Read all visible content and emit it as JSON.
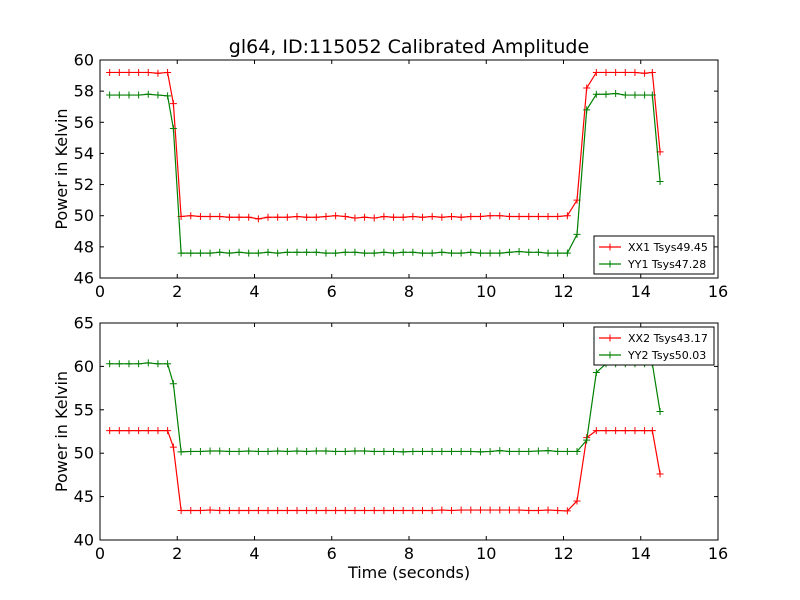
{
  "chart_data": [
    {
      "type": "line",
      "title": "gl64, ID:115052 Calibrated Amplitude",
      "xlabel": "",
      "ylabel": "Power in Kelvin",
      "xlim": [
        0,
        16
      ],
      "ylim": [
        46,
        60
      ],
      "xticks": [
        0,
        2,
        4,
        6,
        8,
        10,
        12,
        14,
        16
      ],
      "yticks": [
        46,
        48,
        50,
        52,
        54,
        56,
        58,
        60
      ],
      "grid": false,
      "legend": "bottom-right",
      "x": [
        0.25,
        0.5,
        0.75,
        1.0,
        1.25,
        1.5,
        1.75,
        1.9,
        2.1,
        2.35,
        2.6,
        2.85,
        3.1,
        3.35,
        3.6,
        3.85,
        4.1,
        4.35,
        4.6,
        4.85,
        5.1,
        5.35,
        5.6,
        5.85,
        6.1,
        6.35,
        6.6,
        6.85,
        7.1,
        7.35,
        7.6,
        7.85,
        8.1,
        8.35,
        8.6,
        8.85,
        9.1,
        9.35,
        9.6,
        9.85,
        10.1,
        10.35,
        10.6,
        10.85,
        11.1,
        11.35,
        11.6,
        11.85,
        12.1,
        12.35,
        12.6,
        12.85,
        13.1,
        13.35,
        13.6,
        13.85,
        14.1,
        14.3,
        14.5
      ],
      "series": [
        {
          "name": "XX1 Tsys49.45",
          "color": "#ff0000",
          "values": [
            59.2,
            59.2,
            59.2,
            59.2,
            59.2,
            59.15,
            59.2,
            57.2,
            49.95,
            50.0,
            49.95,
            49.95,
            49.95,
            49.9,
            49.9,
            49.9,
            49.8,
            49.9,
            49.9,
            49.9,
            49.95,
            49.9,
            49.9,
            49.95,
            50.0,
            49.95,
            49.85,
            49.9,
            49.85,
            49.95,
            49.9,
            49.9,
            49.95,
            49.9,
            49.95,
            49.9,
            49.95,
            49.9,
            49.95,
            49.95,
            50.0,
            50.0,
            49.95,
            49.95,
            49.95,
            49.95,
            49.95,
            49.95,
            50.0,
            51.0,
            58.2,
            59.2,
            59.2,
            59.2,
            59.2,
            59.2,
            59.15,
            59.2,
            54.1
          ]
        },
        {
          "name": "YY1 Tsys47.28",
          "color": "#008000",
          "values": [
            57.75,
            57.75,
            57.75,
            57.75,
            57.8,
            57.75,
            57.7,
            55.6,
            47.6,
            47.6,
            47.6,
            47.6,
            47.65,
            47.6,
            47.65,
            47.6,
            47.6,
            47.65,
            47.6,
            47.65,
            47.65,
            47.65,
            47.65,
            47.6,
            47.6,
            47.65,
            47.65,
            47.6,
            47.6,
            47.65,
            47.6,
            47.65,
            47.65,
            47.6,
            47.6,
            47.65,
            47.6,
            47.6,
            47.65,
            47.6,
            47.6,
            47.6,
            47.65,
            47.7,
            47.65,
            47.65,
            47.6,
            47.6,
            47.6,
            48.8,
            56.8,
            57.8,
            57.8,
            57.85,
            57.75,
            57.75,
            57.75,
            57.75,
            52.2
          ]
        }
      ]
    },
    {
      "type": "line",
      "title": "",
      "xlabel": "Time (seconds)",
      "ylabel": "Power in Kelvin",
      "xlim": [
        0,
        16
      ],
      "ylim": [
        40,
        65
      ],
      "xticks": [
        0,
        2,
        4,
        6,
        8,
        10,
        12,
        14,
        16
      ],
      "yticks": [
        40,
        45,
        50,
        55,
        60,
        65
      ],
      "grid": false,
      "legend": "top-right",
      "x": [
        0.25,
        0.5,
        0.75,
        1.0,
        1.25,
        1.5,
        1.75,
        1.9,
        2.1,
        2.35,
        2.6,
        2.85,
        3.1,
        3.35,
        3.6,
        3.85,
        4.1,
        4.35,
        4.6,
        4.85,
        5.1,
        5.35,
        5.6,
        5.85,
        6.1,
        6.35,
        6.6,
        6.85,
        7.1,
        7.35,
        7.6,
        7.85,
        8.1,
        8.35,
        8.6,
        8.85,
        9.1,
        9.35,
        9.6,
        9.85,
        10.1,
        10.35,
        10.6,
        10.85,
        11.1,
        11.35,
        11.6,
        11.85,
        12.1,
        12.35,
        12.6,
        12.85,
        13.1,
        13.35,
        13.6,
        13.85,
        14.1,
        14.3,
        14.5
      ],
      "series": [
        {
          "name": "XX2 Tsys43.17",
          "color": "#ff0000",
          "values": [
            52.6,
            52.6,
            52.6,
            52.6,
            52.6,
            52.6,
            52.6,
            50.7,
            43.4,
            43.4,
            43.4,
            43.45,
            43.4,
            43.4,
            43.4,
            43.4,
            43.4,
            43.4,
            43.4,
            43.4,
            43.4,
            43.4,
            43.4,
            43.4,
            43.4,
            43.4,
            43.4,
            43.4,
            43.4,
            43.4,
            43.4,
            43.4,
            43.4,
            43.4,
            43.4,
            43.45,
            43.4,
            43.45,
            43.45,
            43.45,
            43.45,
            43.45,
            43.45,
            43.45,
            43.4,
            43.4,
            43.45,
            43.4,
            43.35,
            44.5,
            51.8,
            52.6,
            52.6,
            52.6,
            52.6,
            52.6,
            52.6,
            52.6,
            47.6
          ]
        },
        {
          "name": "YY2 Tsys50.03",
          "color": "#008000",
          "values": [
            60.3,
            60.3,
            60.3,
            60.3,
            60.4,
            60.3,
            60.3,
            58.0,
            50.15,
            50.2,
            50.2,
            50.25,
            50.25,
            50.2,
            50.2,
            50.25,
            50.2,
            50.2,
            50.25,
            50.2,
            50.25,
            50.2,
            50.25,
            50.25,
            50.2,
            50.2,
            50.25,
            50.25,
            50.2,
            50.2,
            50.2,
            50.15,
            50.2,
            50.2,
            50.2,
            50.2,
            50.2,
            50.2,
            50.2,
            50.15,
            50.2,
            50.3,
            50.2,
            50.2,
            50.2,
            50.25,
            50.3,
            50.2,
            50.2,
            50.2,
            51.5,
            59.3,
            60.3,
            60.3,
            60.3,
            60.3,
            60.3,
            60.3,
            54.8
          ]
        }
      ]
    }
  ]
}
